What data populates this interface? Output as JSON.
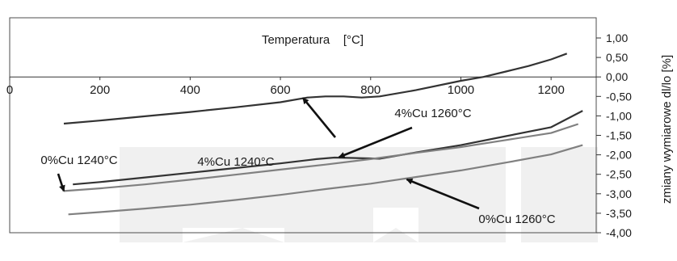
{
  "chart_data": {
    "type": "line",
    "title": "Temperatura    [°C]",
    "xlabel": "Temperatura    [°C]",
    "ylabel": "zmiany wymiarowe dl/lo [%]",
    "xlim": [
      0,
      1300
    ],
    "ylim": [
      -4.0,
      1.0
    ],
    "x_ticks": [
      "0",
      "200",
      "400",
      "600",
      "800",
      "1000",
      "1200"
    ],
    "y_ticks": [
      "1,00",
      "0,50",
      "0,00",
      "-0,50",
      "-1,00",
      "-1,50",
      "-2,00",
      "-2,50",
      "-3,00",
      "-3,50",
      "-4,00"
    ],
    "grid": false,
    "series": [
      {
        "name": "4%Cu 1240°C",
        "color": "#333333",
        "points": [
          [
            120,
            -1.2
          ],
          [
            200,
            -1.12
          ],
          [
            300,
            -1.01
          ],
          [
            400,
            -0.9
          ],
          [
            500,
            -0.78
          ],
          [
            600,
            -0.65
          ],
          [
            660,
            -0.53
          ],
          [
            700,
            -0.5
          ],
          [
            740,
            -0.5
          ],
          [
            780,
            -0.53
          ],
          [
            820,
            -0.5
          ],
          [
            900,
            -0.34
          ],
          [
            1000,
            -0.1
          ],
          [
            1050,
            0.0
          ],
          [
            1100,
            0.14
          ],
          [
            1150,
            0.28
          ],
          [
            1200,
            0.45
          ],
          [
            1235,
            0.6
          ]
        ]
      },
      {
        "name": "4%Cu 1260°C",
        "color": "#333333",
        "points": [
          [
            140,
            -2.76
          ],
          [
            200,
            -2.7
          ],
          [
            300,
            -2.58
          ],
          [
            400,
            -2.46
          ],
          [
            500,
            -2.34
          ],
          [
            600,
            -2.22
          ],
          [
            680,
            -2.11
          ],
          [
            720,
            -2.07
          ],
          [
            760,
            -2.08
          ],
          [
            820,
            -2.1
          ],
          [
            900,
            -1.94
          ],
          [
            1000,
            -1.75
          ],
          [
            1100,
            -1.52
          ],
          [
            1200,
            -1.29
          ],
          [
            1270,
            -0.87
          ]
        ]
      },
      {
        "name": "0%Cu 1240°C",
        "color": "#808080",
        "points": [
          [
            120,
            -2.93
          ],
          [
            200,
            -2.86
          ],
          [
            300,
            -2.76
          ],
          [
            400,
            -2.64
          ],
          [
            500,
            -2.51
          ],
          [
            600,
            -2.38
          ],
          [
            700,
            -2.25
          ],
          [
            800,
            -2.11
          ],
          [
            900,
            -1.95
          ],
          [
            1000,
            -1.8
          ],
          [
            1100,
            -1.62
          ],
          [
            1200,
            -1.44
          ],
          [
            1260,
            -1.21
          ]
        ]
      },
      {
        "name": "0%Cu 1260°C",
        "color": "#808080",
        "points": [
          [
            130,
            -3.53
          ],
          [
            200,
            -3.47
          ],
          [
            300,
            -3.38
          ],
          [
            400,
            -3.28
          ],
          [
            500,
            -3.16
          ],
          [
            600,
            -3.03
          ],
          [
            700,
            -2.88
          ],
          [
            800,
            -2.74
          ],
          [
            900,
            -2.57
          ],
          [
            1000,
            -2.4
          ],
          [
            1100,
            -2.2
          ],
          [
            1200,
            -1.99
          ],
          [
            1270,
            -1.75
          ]
        ]
      }
    ],
    "annotations": [
      {
        "text": "4%Cu 1240°C",
        "target_series": "4%Cu 1240°C",
        "target": [
          650,
          -0.54
        ]
      },
      {
        "text": "4%Cu 1260°C",
        "target_series": "4%Cu 1260°C",
        "target": [
          730,
          -2.06
        ]
      },
      {
        "text": "0%Cu 1240°C",
        "target_series": "0%Cu 1240°C",
        "target": [
          120,
          -2.93
        ]
      },
      {
        "text": "0%Cu 1260°C",
        "target_series": "0%Cu 1260°C",
        "target": [
          880,
          -2.63
        ]
      }
    ]
  }
}
